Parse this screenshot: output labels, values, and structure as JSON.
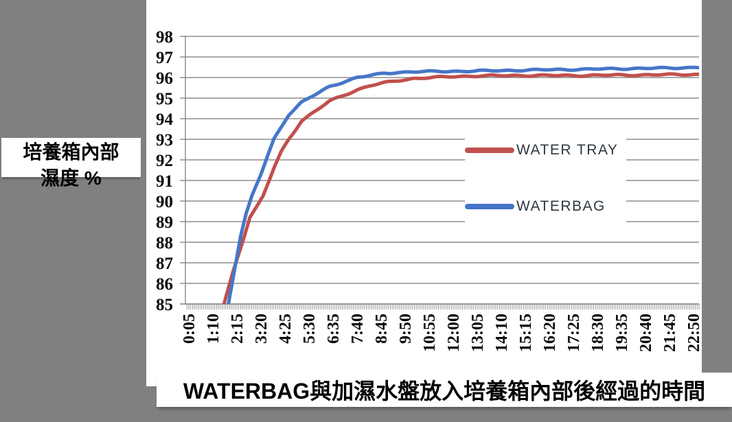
{
  "page": {
    "background_color": "#808080",
    "panel_color": "#ffffff"
  },
  "y_axis_label": {
    "line1": "培養箱內部",
    "line2": "濕度 %"
  },
  "x_axis_title": "WATERBAG與加濕水盤放入培養箱內部後經過的時間",
  "legend": {
    "items": [
      {
        "label": "WATER TRAY",
        "color": "#C0504D"
      },
      {
        "label": "WATERBAG",
        "color": "#4676C8"
      }
    ]
  },
  "chart_data": {
    "type": "line",
    "title": "",
    "ylabel": "培養箱內部 濕度 %",
    "xlabel": "WATERBAG與加濕水盤放入培養箱內部後經過的時間",
    "ylim": [
      85,
      98
    ],
    "y_ticks": [
      98,
      97,
      96,
      95,
      94,
      93,
      92,
      91,
      90,
      89,
      88,
      87,
      86,
      85
    ],
    "x_tick_labels": [
      "0:05",
      "1:10",
      "2:15",
      "3:20",
      "4:25",
      "5:30",
      "6:35",
      "7:40",
      "8:45",
      "9:50",
      "10:55",
      "12:00",
      "13:05",
      "14:10",
      "15:15",
      "16:20",
      "17:25",
      "18:30",
      "19:35",
      "20:40",
      "21:45",
      "22:50"
    ],
    "x_tick_minutes": [
      5,
      70,
      135,
      200,
      265,
      330,
      395,
      460,
      525,
      590,
      655,
      720,
      785,
      850,
      915,
      980,
      1045,
      1110,
      1175,
      1240,
      1305,
      1370
    ],
    "x_minor_tick_minutes": 5,
    "x_range_minutes": [
      0,
      1385
    ],
    "grid": "horizontal",
    "grid_color": "#8d8d8d",
    "legend_position": "center-right",
    "series": [
      {
        "name": "WATER TRAY",
        "color": "#C0504D",
        "points": [
          [
            90,
            84.0
          ],
          [
            100,
            85.0
          ],
          [
            125,
            86.6
          ],
          [
            150,
            88.0
          ],
          [
            170,
            89.2
          ],
          [
            205,
            90.2
          ],
          [
            235,
            91.6
          ],
          [
            255,
            92.4
          ],
          [
            275,
            93.0
          ],
          [
            310,
            93.9
          ],
          [
            350,
            94.4
          ],
          [
            385,
            94.85
          ],
          [
            425,
            95.15
          ],
          [
            460,
            95.4
          ],
          [
            495,
            95.6
          ],
          [
            535,
            95.75
          ],
          [
            570,
            95.85
          ],
          [
            610,
            95.95
          ],
          [
            665,
            96.0
          ],
          [
            720,
            96.05
          ],
          [
            795,
            96.08
          ],
          [
            885,
            96.1
          ],
          [
            980,
            96.1
          ],
          [
            1075,
            96.1
          ],
          [
            1165,
            96.12
          ],
          [
            1260,
            96.13
          ],
          [
            1350,
            96.15
          ],
          [
            1385,
            96.15
          ]
        ]
      },
      {
        "name": "WATERBAG",
        "color": "#4676C8",
        "points": [
          [
            105,
            84.0
          ],
          [
            112,
            85.0
          ],
          [
            130,
            86.8
          ],
          [
            145,
            88.3
          ],
          [
            160,
            89.4
          ],
          [
            175,
            90.2
          ],
          [
            200,
            91.3
          ],
          [
            220,
            92.3
          ],
          [
            235,
            93.0
          ],
          [
            275,
            94.2
          ],
          [
            310,
            94.8
          ],
          [
            350,
            95.2
          ],
          [
            385,
            95.55
          ],
          [
            425,
            95.8
          ],
          [
            460,
            96.0
          ],
          [
            495,
            96.1
          ],
          [
            535,
            96.2
          ],
          [
            570,
            96.25
          ],
          [
            610,
            96.28
          ],
          [
            700,
            96.3
          ],
          [
            795,
            96.32
          ],
          [
            885,
            96.35
          ],
          [
            980,
            96.38
          ],
          [
            1075,
            96.4
          ],
          [
            1165,
            96.43
          ],
          [
            1260,
            96.45
          ],
          [
            1350,
            96.48
          ],
          [
            1385,
            96.5
          ]
        ]
      }
    ]
  }
}
